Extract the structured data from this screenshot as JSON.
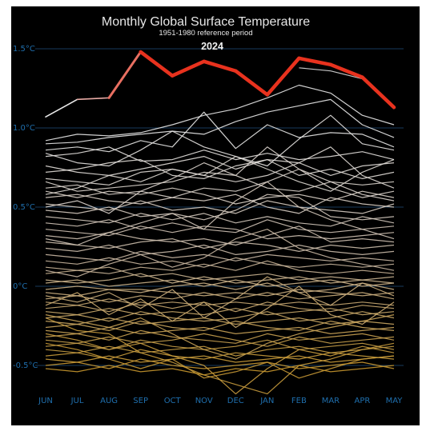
{
  "chart_data": {
    "type": "line",
    "title": "Monthly Global Surface Temperature",
    "subtitle": "1951-1980 reference period",
    "highlight_label": "2024",
    "categories": [
      "JUN",
      "JUL",
      "AUG",
      "SEP",
      "OCT",
      "NOV",
      "DEC",
      "JAN",
      "FEB",
      "MAR",
      "APR",
      "MAY"
    ],
    "y_ticks": [
      {
        "value": 1.5,
        "label": "1.5°C"
      },
      {
        "value": 1.0,
        "label": "1.0°C"
      },
      {
        "value": 0.5,
        "label": "0.5°C"
      },
      {
        "value": 0.0,
        "label": "0°C"
      },
      {
        "value": -0.5,
        "label": "-0.5°C"
      }
    ],
    "ylim": [
      -0.75,
      1.6
    ],
    "grid": true,
    "background": "#000000",
    "colors": {
      "highlight": "#e8321e",
      "recent": "#e8e8e8",
      "mid": "#c9b8a6",
      "old": "#c8962a",
      "gridline": "#1f4e7a",
      "tick_text": "#1f6fae"
    },
    "series": [
      {
        "values": [
          1.07,
          1.18,
          1.19,
          1.48,
          1.33,
          1.42,
          1.36,
          1.21,
          1.44,
          1.4,
          1.32,
          1.13
        ]
      },
      {
        "values": [
          null,
          null,
          null,
          null,
          null,
          null,
          null,
          null,
          1.38,
          1.36,
          1.31,
          1.12
        ]
      },
      {
        "values": [
          0.92,
          0.96,
          0.95,
          0.97,
          1.02,
          1.08,
          1.12,
          1.19,
          1.27,
          1.22,
          1.08,
          1.02
        ]
      },
      {
        "values": [
          0.9,
          0.91,
          0.94,
          0.96,
          0.98,
          0.96,
          1.04,
          1.1,
          1.14,
          1.18,
          1.02,
          0.94
        ]
      },
      {
        "values": [
          0.86,
          0.88,
          0.85,
          0.92,
          0.88,
          1.1,
          0.87,
          1.02,
          0.94,
          0.97,
          0.96,
          0.88
        ]
      },
      {
        "values": [
          0.84,
          0.78,
          0.76,
          0.86,
          0.98,
          0.88,
          0.82,
          0.76,
          0.93,
          1.08,
          0.9,
          0.86
        ]
      },
      {
        "values": [
          0.82,
          0.84,
          0.88,
          0.79,
          0.8,
          0.86,
          0.8,
          0.84,
          0.8,
          0.82,
          0.85,
          0.8
        ]
      },
      {
        "values": [
          0.76,
          0.72,
          0.7,
          0.74,
          0.78,
          0.82,
          0.74,
          0.8,
          0.78,
          0.7,
          0.76,
          0.78
        ]
      },
      {
        "values": [
          0.72,
          0.74,
          0.78,
          0.8,
          0.7,
          0.68,
          0.76,
          0.8,
          0.7,
          0.74,
          0.68,
          0.72
        ]
      },
      {
        "values": [
          0.68,
          0.66,
          0.64,
          0.72,
          0.74,
          0.7,
          0.66,
          0.7,
          0.78,
          0.88,
          0.7,
          0.62
        ]
      },
      {
        "values": [
          0.66,
          0.6,
          0.62,
          0.64,
          0.66,
          0.72,
          0.7,
          0.62,
          0.6,
          0.66,
          0.64,
          0.66
        ]
      },
      {
        "values": [
          0.62,
          0.64,
          0.58,
          0.6,
          0.56,
          0.62,
          0.6,
          0.66,
          0.74,
          0.62,
          0.56,
          0.6
        ]
      },
      {
        "values": [
          0.6,
          0.56,
          0.6,
          0.58,
          0.62,
          0.58,
          0.52,
          0.56,
          0.58,
          0.54,
          0.6,
          0.56
        ]
      },
      {
        "values": [
          0.56,
          0.58,
          0.54,
          0.52,
          0.56,
          0.54,
          0.58,
          0.5,
          0.46,
          0.56,
          0.52,
          0.5
        ]
      },
      {
        "values": [
          0.52,
          0.5,
          0.48,
          0.54,
          0.48,
          0.5,
          0.46,
          0.54,
          0.5,
          0.48,
          0.46,
          0.52
        ]
      },
      {
        "values": [
          0.48,
          0.46,
          0.5,
          0.44,
          0.46,
          0.42,
          0.48,
          0.58,
          0.56,
          0.44,
          0.42,
          0.44
        ]
      },
      {
        "values": [
          0.44,
          0.42,
          0.4,
          0.46,
          0.42,
          0.46,
          0.4,
          0.44,
          0.4,
          0.38,
          0.44,
          0.4
        ]
      },
      {
        "values": [
          0.4,
          0.38,
          0.42,
          0.36,
          0.4,
          0.36,
          0.34,
          0.42,
          0.36,
          0.34,
          0.36,
          0.38
        ]
      },
      {
        "values": [
          0.36,
          0.34,
          0.32,
          0.38,
          0.34,
          0.38,
          0.36,
          0.3,
          0.32,
          0.3,
          0.32,
          0.34
        ]
      },
      {
        "values": [
          0.32,
          0.3,
          0.34,
          0.3,
          0.28,
          0.3,
          0.26,
          0.32,
          0.38,
          0.28,
          0.3,
          0.28
        ]
      },
      {
        "values": [
          0.28,
          0.26,
          0.24,
          0.28,
          0.3,
          0.24,
          0.28,
          0.26,
          0.22,
          0.26,
          0.24,
          0.26
        ]
      },
      {
        "values": [
          0.24,
          0.22,
          0.26,
          0.2,
          0.22,
          0.26,
          0.2,
          0.22,
          0.26,
          0.22,
          0.2,
          0.22
        ]
      },
      {
        "values": [
          0.2,
          0.18,
          0.16,
          0.22,
          0.18,
          0.2,
          0.16,
          0.2,
          0.18,
          0.16,
          0.18,
          0.16
        ]
      },
      {
        "values": [
          0.16,
          0.14,
          0.18,
          0.14,
          0.16,
          0.12,
          0.18,
          0.14,
          0.12,
          0.14,
          0.12,
          0.14
        ]
      },
      {
        "values": [
          0.12,
          0.1,
          0.08,
          0.12,
          0.1,
          0.14,
          0.1,
          0.16,
          0.1,
          0.08,
          0.1,
          0.08
        ]
      },
      {
        "values": [
          0.08,
          0.1,
          0.12,
          0.06,
          0.08,
          0.04,
          0.06,
          0.08,
          0.04,
          0.06,
          0.04,
          0.06
        ]
      },
      {
        "values": [
          0.04,
          0.02,
          0.04,
          0.08,
          0.02,
          0.06,
          0.02,
          0.04,
          0.06,
          0.02,
          0.04,
          0.02
        ]
      },
      {
        "values": [
          0.02,
          0.04,
          0.0,
          0.02,
          0.04,
          0.0,
          0.04,
          0.0,
          0.02,
          0.04,
          0.0,
          0.02
        ]
      },
      {
        "values": [
          -0.02,
          0.0,
          -0.02,
          -0.04,
          0.0,
          0.02,
          -0.02,
          0.02,
          -0.04,
          -0.02,
          0.02,
          -0.02
        ]
      },
      {
        "values": [
          -0.04,
          -0.06,
          -0.02,
          -0.02,
          -0.04,
          -0.06,
          -0.04,
          -0.06,
          -0.02,
          -0.04,
          -0.06,
          -0.04
        ]
      },
      {
        "values": [
          -0.08,
          -0.06,
          -0.1,
          -0.06,
          -0.08,
          -0.04,
          -0.08,
          -0.04,
          -0.08,
          -0.06,
          -0.04,
          -0.08
        ]
      },
      {
        "values": [
          -0.1,
          -0.12,
          -0.08,
          -0.12,
          -0.1,
          -0.12,
          -0.1,
          -0.12,
          -0.1,
          -0.12,
          -0.1,
          -0.12
        ]
      },
      {
        "values": [
          -0.14,
          -0.12,
          -0.16,
          -0.1,
          -0.14,
          -0.1,
          -0.16,
          -0.1,
          -0.14,
          -0.16,
          -0.12,
          -0.14
        ]
      },
      {
        "values": [
          -0.16,
          -0.18,
          -0.14,
          -0.18,
          -0.16,
          -0.18,
          -0.14,
          -0.18,
          -0.16,
          -0.14,
          -0.18,
          -0.16
        ]
      },
      {
        "values": [
          -0.2,
          -0.18,
          -0.22,
          -0.16,
          -0.2,
          -0.22,
          -0.2,
          -0.16,
          -0.22,
          -0.2,
          -0.16,
          -0.2
        ]
      },
      {
        "values": [
          -0.22,
          -0.24,
          -0.2,
          -0.24,
          -0.22,
          -0.2,
          -0.24,
          -0.22,
          -0.2,
          -0.24,
          -0.22,
          -0.24
        ]
      },
      {
        "values": [
          -0.26,
          -0.24,
          -0.28,
          -0.22,
          -0.26,
          -0.28,
          -0.22,
          -0.26,
          -0.28,
          -0.22,
          -0.26,
          -0.28
        ]
      },
      {
        "values": [
          -0.28,
          -0.3,
          -0.26,
          -0.3,
          -0.28,
          -0.26,
          -0.3,
          -0.28,
          -0.26,
          -0.3,
          -0.28,
          -0.26
        ]
      },
      {
        "values": [
          -0.32,
          -0.3,
          -0.34,
          -0.28,
          -0.32,
          -0.34,
          -0.36,
          -0.3,
          -0.34,
          -0.32,
          -0.3,
          -0.34
        ]
      },
      {
        "values": [
          -0.34,
          -0.36,
          -0.32,
          -0.36,
          -0.34,
          -0.3,
          -0.34,
          -0.38,
          -0.32,
          -0.36,
          -0.34,
          -0.32
        ]
      },
      {
        "values": [
          -0.38,
          -0.36,
          -0.4,
          -0.34,
          -0.38,
          -0.4,
          -0.38,
          -0.34,
          -0.4,
          -0.38,
          -0.36,
          -0.4
        ]
      },
      {
        "values": [
          -0.4,
          -0.42,
          -0.38,
          -0.42,
          -0.4,
          -0.38,
          -0.44,
          -0.4,
          -0.38,
          -0.42,
          -0.4,
          -0.38
        ]
      },
      {
        "values": [
          -0.44,
          -0.42,
          -0.46,
          -0.4,
          -0.44,
          -0.46,
          -0.42,
          -0.44,
          -0.46,
          -0.42,
          -0.44,
          -0.46
        ]
      },
      {
        "values": [
          -0.46,
          -0.48,
          -0.44,
          -0.48,
          -0.46,
          -0.44,
          -0.48,
          -0.46,
          -0.44,
          -0.48,
          -0.46,
          -0.44
        ]
      },
      {
        "values": [
          -0.5,
          -0.48,
          -0.52,
          -0.46,
          -0.5,
          -0.52,
          -0.5,
          -0.48,
          -0.52,
          -0.5,
          -0.48,
          -0.52
        ]
      },
      {
        "values": [
          -0.52,
          -0.54,
          -0.5,
          -0.54,
          -0.52,
          -0.56,
          -0.52,
          -0.54,
          -0.5,
          -0.54,
          -0.52,
          -0.5
        ]
      },
      {
        "values": [
          -0.3,
          -0.34,
          -0.4,
          -0.36,
          -0.44,
          -0.5,
          -0.68,
          -0.52,
          -0.4,
          -0.44,
          -0.38,
          -0.42
        ]
      },
      {
        "values": [
          -0.2,
          -0.28,
          -0.3,
          -0.42,
          -0.48,
          -0.56,
          -0.62,
          -0.68,
          -0.5,
          -0.46,
          -0.4,
          -0.36
        ]
      },
      {
        "values": [
          -0.36,
          -0.4,
          -0.46,
          -0.52,
          -0.46,
          -0.58,
          -0.54,
          -0.48,
          -0.58,
          -0.52,
          -0.46,
          -0.44
        ]
      },
      {
        "values": [
          -0.18,
          -0.22,
          -0.26,
          -0.2,
          -0.3,
          -0.4,
          -0.46,
          -0.36,
          -0.3,
          -0.26,
          -0.22,
          -0.18
        ]
      },
      {
        "values": [
          0.1,
          0.06,
          0.14,
          0.2,
          0.12,
          0.18,
          0.3,
          0.36,
          0.24,
          0.18,
          0.14,
          0.1
        ]
      },
      {
        "values": [
          0.3,
          0.26,
          0.34,
          0.4,
          0.46,
          0.36,
          0.54,
          0.66,
          0.5,
          0.42,
          0.36,
          0.3
        ]
      },
      {
        "values": [
          0.5,
          0.54,
          0.46,
          0.6,
          0.68,
          0.78,
          0.7,
          0.88,
          0.74,
          0.66,
          0.58,
          0.54
        ]
      },
      {
        "values": [
          0.58,
          0.62,
          0.7,
          0.66,
          0.74,
          0.7,
          0.82,
          0.74,
          0.66,
          0.6,
          0.72,
          0.8
        ]
      },
      {
        "values": [
          -0.06,
          -0.1,
          -0.04,
          -0.14,
          -0.02,
          -0.2,
          -0.08,
          0.06,
          -0.04,
          -0.12,
          0.02,
          -0.06
        ]
      },
      {
        "values": [
          -0.12,
          -0.04,
          -0.18,
          -0.08,
          -0.22,
          -0.1,
          -0.26,
          -0.14,
          0.0,
          -0.18,
          -0.24,
          -0.1
        ]
      }
    ]
  }
}
